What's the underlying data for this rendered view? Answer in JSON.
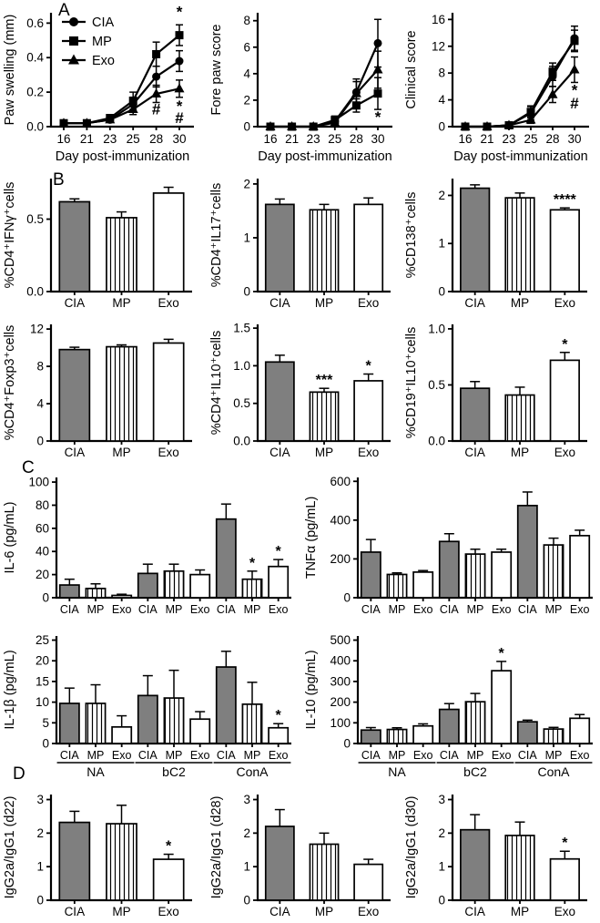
{
  "figure": {
    "panel_labels": {
      "a": "A",
      "b": "B",
      "c": "C",
      "d": "D"
    }
  },
  "colors": {
    "bar_gray": "#7f7f7f",
    "ink": "#000000",
    "background": "#ffffff"
  },
  "groups": [
    "CIA",
    "MP",
    "Exo"
  ],
  "chart_data": [
    {
      "id": "paw_swelling",
      "panel": "A",
      "type": "line",
      "legend": true,
      "ylabel": "Paw swelling (mm)",
      "xlabel": "Day post-immunization",
      "x": [
        "16",
        "21",
        "23",
        "25",
        "28",
        "30"
      ],
      "ylim": [
        0,
        0.66
      ],
      "yticks": [
        "0.0",
        "0.2",
        "0.4",
        "0.6"
      ],
      "series": [
        {
          "name": "CIA",
          "marker": "circle",
          "values": [
            0.02,
            0.02,
            0.04,
            0.13,
            0.29,
            0.38
          ],
          "errors": [
            0.01,
            0.01,
            0.01,
            0.04,
            0.06,
            0.06
          ]
        },
        {
          "name": "MP",
          "marker": "square",
          "values": [
            0.02,
            0.02,
            0.05,
            0.15,
            0.42,
            0.53
          ],
          "errors": [
            0.01,
            0.01,
            0.01,
            0.05,
            0.07,
            0.06
          ]
        },
        {
          "name": "Exo",
          "marker": "triangle",
          "values": [
            0.02,
            0.02,
            0.04,
            0.1,
            0.19,
            0.22
          ],
          "errors": [
            0.01,
            0.01,
            0.01,
            0.03,
            0.05,
            0.05
          ]
        }
      ],
      "annotations": [
        {
          "text": "*",
          "xi": 5,
          "y": 0.635
        },
        {
          "text": "#",
          "xi": 4,
          "y": 0.07
        },
        {
          "text": "*",
          "xi": 5,
          "y": 0.09
        },
        {
          "text": "#",
          "xi": 5,
          "y": 0.02
        }
      ]
    },
    {
      "id": "fore_paw_score",
      "panel": "A",
      "type": "line",
      "legend": false,
      "ylabel": "Fore paw score",
      "xlabel": "Day post-immunization",
      "x": [
        "16",
        "21",
        "23",
        "25",
        "28",
        "30"
      ],
      "ylim": [
        0,
        8.6
      ],
      "yticks": [
        "0",
        "2",
        "4",
        "6",
        "8"
      ],
      "series": [
        {
          "name": "CIA",
          "marker": "circle",
          "values": [
            0,
            0,
            0,
            0.4,
            2.6,
            6.3
          ],
          "errors": [
            0,
            0,
            0,
            0.2,
            1.0,
            1.8
          ]
        },
        {
          "name": "MP",
          "marker": "square",
          "values": [
            0,
            0,
            0,
            0.5,
            1.6,
            2.5
          ],
          "errors": [
            0,
            0,
            0,
            0.3,
            0.5,
            1.2
          ]
        },
        {
          "name": "Exo",
          "marker": "triangle",
          "values": [
            0,
            0,
            0,
            0.3,
            2.5,
            4.3
          ],
          "errors": [
            0,
            0,
            0,
            0.2,
            0.9,
            1.4
          ]
        }
      ],
      "annotations": [
        {
          "text": "*",
          "xi": 5,
          "y": 0.35
        }
      ]
    },
    {
      "id": "clinical_score",
      "panel": "A",
      "type": "line",
      "legend": false,
      "ylabel": "Clinical score",
      "xlabel": "Day post-immunization",
      "x": [
        "16",
        "21",
        "23",
        "25",
        "28",
        "30"
      ],
      "ylim": [
        0,
        17
      ],
      "yticks": [
        "0",
        "4",
        "8",
        "12",
        "16"
      ],
      "series": [
        {
          "name": "CIA",
          "marker": "circle",
          "values": [
            0,
            0,
            0.2,
            2.0,
            7.5,
            13.2
          ],
          "errors": [
            0,
            0,
            0.1,
            1.0,
            1.5,
            1.8
          ]
        },
        {
          "name": "MP",
          "marker": "square",
          "values": [
            0,
            0,
            0.2,
            2.2,
            8.2,
            12.8
          ],
          "errors": [
            0,
            0,
            0.1,
            0.9,
            1.3,
            1.6
          ]
        },
        {
          "name": "Exo",
          "marker": "triangle",
          "values": [
            0,
            0,
            0.2,
            1.0,
            4.8,
            8.5
          ],
          "errors": [
            0,
            0,
            0.1,
            0.5,
            1.2,
            1.9
          ]
        }
      ],
      "annotations": [
        {
          "text": "*",
          "xi": 5,
          "y": 4.7
        },
        {
          "text": "#",
          "xi": 5,
          "y": 2.7
        }
      ]
    },
    {
      "id": "cd4_ifng",
      "panel": "B",
      "type": "bar",
      "ylabel": "%CD4⁺IFNγ⁺cells",
      "categories": [
        "CIA",
        "MP",
        "Exo"
      ],
      "values": [
        0.62,
        0.51,
        0.68
      ],
      "errors": [
        0.02,
        0.04,
        0.04
      ],
      "ylim": [
        0,
        0.78
      ],
      "yticks": [
        "0.0",
        "0.5"
      ],
      "fills": [
        "solid",
        "stripes",
        "open"
      ],
      "sig": [
        "",
        "",
        ""
      ]
    },
    {
      "id": "cd4_il17",
      "panel": "B",
      "type": "bar",
      "ylabel": "%CD4⁺IL17⁺cells",
      "categories": [
        "CIA",
        "MP",
        "Exo"
      ],
      "values": [
        1.62,
        1.52,
        1.62
      ],
      "errors": [
        0.1,
        0.1,
        0.12
      ],
      "ylim": [
        0,
        2.1
      ],
      "yticks": [
        "0",
        "1",
        "2"
      ],
      "fills": [
        "solid",
        "stripes",
        "open"
      ],
      "sig": [
        "",
        "",
        ""
      ]
    },
    {
      "id": "cd138",
      "panel": "B",
      "type": "bar",
      "ylabel": "%CD138⁺cells",
      "categories": [
        "CIA",
        "MP",
        "Exo"
      ],
      "values": [
        2.15,
        1.95,
        1.7
      ],
      "errors": [
        0.07,
        0.1,
        0.04
      ],
      "ylim": [
        0,
        2.35
      ],
      "yticks": [
        "0",
        "1",
        "2"
      ],
      "fills": [
        "solid",
        "stripes",
        "open"
      ],
      "sig": [
        "",
        "",
        "****"
      ]
    },
    {
      "id": "cd4_foxp3",
      "panel": "B",
      "type": "bar",
      "ylabel": "%CD4⁺Foxp3⁺cells",
      "categories": [
        "CIA",
        "MP",
        "Exo"
      ],
      "values": [
        9.8,
        10.1,
        10.5
      ],
      "errors": [
        0.25,
        0.2,
        0.4
      ],
      "ylim": [
        0,
        12.5
      ],
      "yticks": [
        "0",
        "4",
        "8",
        "12"
      ],
      "fills": [
        "solid",
        "stripes",
        "open"
      ],
      "sig": [
        "",
        "",
        ""
      ]
    },
    {
      "id": "cd4_il10",
      "panel": "B",
      "type": "bar",
      "ylabel": "%CD4⁺IL10⁺cells",
      "categories": [
        "CIA",
        "MP",
        "Exo"
      ],
      "values": [
        1.05,
        0.65,
        0.8
      ],
      "errors": [
        0.09,
        0.05,
        0.09
      ],
      "ylim": [
        0,
        1.55
      ],
      "yticks": [
        "0.0",
        "0.5",
        "1.0",
        "1.5"
      ],
      "fills": [
        "solid",
        "stripes",
        "open"
      ],
      "sig": [
        "",
        "***",
        "*"
      ]
    },
    {
      "id": "cd19_il10",
      "panel": "B",
      "type": "bar",
      "ylabel": "%CD19⁺IL10⁺cells",
      "categories": [
        "CIA",
        "MP",
        "Exo"
      ],
      "values": [
        0.47,
        0.41,
        0.72
      ],
      "errors": [
        0.06,
        0.07,
        0.07
      ],
      "ylim": [
        0,
        1.04
      ],
      "yticks": [
        "0.0",
        "0.5",
        "1.0"
      ],
      "fills": [
        "solid",
        "stripes",
        "open"
      ],
      "sig": [
        "",
        "",
        "*"
      ]
    },
    {
      "id": "il6",
      "panel": "C",
      "type": "bar",
      "ylabel": "IL-6 (pg/mL)",
      "categories": [
        "CIA",
        "MP",
        "Exo",
        "CIA",
        "MP",
        "Exo",
        "CIA",
        "MP",
        "Exo"
      ],
      "values": [
        11,
        8,
        2,
        21,
        23,
        20,
        68,
        16,
        27
      ],
      "errors": [
        5,
        4,
        1,
        8,
        6,
        4,
        13,
        7,
        6
      ],
      "ylim": [
        0,
        104
      ],
      "yticks": [
        "0",
        "20",
        "40",
        "60",
        "80",
        "100"
      ],
      "fills": [
        "solid",
        "stripes",
        "open"
      ],
      "sig": [
        "",
        "",
        "",
        "",
        "",
        "",
        "",
        "*",
        "*"
      ]
    },
    {
      "id": "tnfa",
      "panel": "C",
      "type": "bar",
      "ylabel": "TNFα (pg/mL)",
      "categories": [
        "CIA",
        "MP",
        "Exo",
        "CIA",
        "MP",
        "Exo",
        "CIA",
        "MP",
        "Exo"
      ],
      "values": [
        235,
        120,
        132,
        290,
        225,
        235,
        475,
        272,
        320
      ],
      "errors": [
        65,
        8,
        8,
        40,
        25,
        15,
        70,
        35,
        28
      ],
      "ylim": [
        0,
        620
      ],
      "yticks": [
        "0",
        "200",
        "400",
        "600"
      ],
      "fills": [
        "solid",
        "stripes",
        "open"
      ],
      "sig": [
        "",
        "",
        "",
        "",
        "",
        "",
        "",
        "",
        ""
      ]
    },
    {
      "id": "il1b",
      "panel": "C",
      "type": "bar",
      "ylabel": "IL-1β (pg/mL)",
      "categories": [
        "CIA",
        "MP",
        "Exo",
        "CIA",
        "MP",
        "Exo",
        "CIA",
        "MP",
        "Exo"
      ],
      "values": [
        9.7,
        9.7,
        4.0,
        11.6,
        11.0,
        5.9,
        18.5,
        9.5,
        3.8
      ],
      "errors": [
        3.7,
        4.5,
        2.7,
        4.8,
        6.7,
        1.8,
        3.8,
        5.3,
        1.0
      ],
      "ylim": [
        0,
        26
      ],
      "yticks": [
        "0",
        "5",
        "10",
        "15",
        "20",
        "25"
      ],
      "fills": [
        "solid",
        "stripes",
        "open"
      ],
      "sig": [
        "",
        "",
        "",
        "",
        "",
        "",
        "",
        "",
        "*"
      ],
      "group_labels": [
        "NA",
        "bC2",
        "ConA"
      ]
    },
    {
      "id": "il10_secreted",
      "panel": "C",
      "type": "bar",
      "ylabel": "IL-10 (pg/mL)",
      "categories": [
        "CIA",
        "MP",
        "Exo",
        "CIA",
        "MP",
        "Exo",
        "CIA",
        "MP",
        "Exo"
      ],
      "values": [
        65,
        68,
        85,
        165,
        202,
        352,
        105,
        70,
        122
      ],
      "errors": [
        12,
        8,
        10,
        28,
        40,
        45,
        8,
        8,
        18
      ],
      "ylim": [
        0,
        520
      ],
      "yticks": [
        "0",
        "100",
        "200",
        "300",
        "400",
        "500"
      ],
      "fills": [
        "solid",
        "stripes",
        "open"
      ],
      "sig": [
        "",
        "",
        "",
        "",
        "",
        "*",
        "",
        "",
        ""
      ],
      "group_labels": [
        "NA",
        "bC2",
        "ConA"
      ]
    },
    {
      "id": "igg_d22",
      "panel": "D",
      "type": "bar",
      "ylabel": "IgG2a/IgG1 (d22)",
      "categories": [
        "CIA",
        "MP",
        "Exo"
      ],
      "values": [
        2.32,
        2.28,
        1.22
      ],
      "errors": [
        0.33,
        0.55,
        0.15
      ],
      "ylim": [
        0,
        3.15
      ],
      "yticks": [
        "0",
        "1",
        "2",
        "3"
      ],
      "fills": [
        "solid",
        "stripes",
        "open"
      ],
      "sig": [
        "",
        "",
        "*"
      ]
    },
    {
      "id": "igg_d28",
      "panel": "D",
      "type": "bar",
      "ylabel": "IgG2a/IgG1 (d28)",
      "categories": [
        "CIA",
        "MP",
        "Exo"
      ],
      "values": [
        2.2,
        1.67,
        1.07
      ],
      "errors": [
        0.5,
        0.33,
        0.15
      ],
      "ylim": [
        0,
        3.15
      ],
      "yticks": [
        "0",
        "1",
        "2",
        "3"
      ],
      "fills": [
        "solid",
        "stripes",
        "open"
      ],
      "sig": [
        "",
        "",
        ""
      ]
    },
    {
      "id": "igg_d30",
      "panel": "D",
      "type": "bar",
      "ylabel": "IgG2a/IgG1 (d30)",
      "categories": [
        "CIA",
        "MP",
        "Exo"
      ],
      "values": [
        2.1,
        1.93,
        1.23
      ],
      "errors": [
        0.45,
        0.4,
        0.23
      ],
      "ylim": [
        0,
        3.15
      ],
      "yticks": [
        "0",
        "1",
        "2",
        "3"
      ],
      "fills": [
        "solid",
        "stripes",
        "open"
      ],
      "sig": [
        "",
        "",
        "*"
      ]
    }
  ]
}
